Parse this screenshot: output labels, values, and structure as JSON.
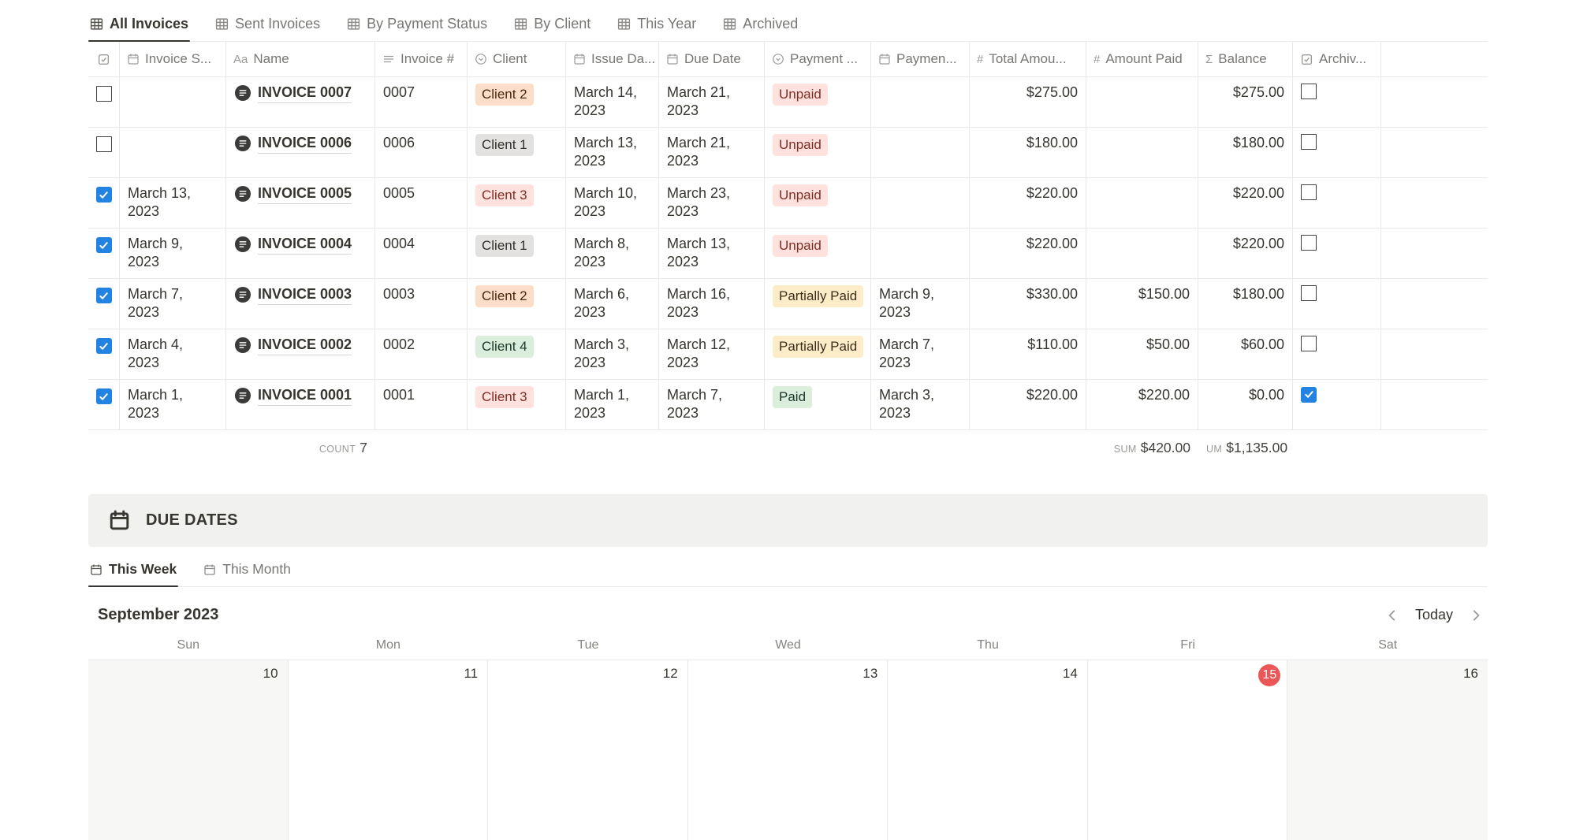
{
  "tabs": [
    {
      "label": "All Invoices",
      "active": true
    },
    {
      "label": "Sent Invoices",
      "active": false
    },
    {
      "label": "By Payment Status",
      "active": false
    },
    {
      "label": "By Client",
      "active": false
    },
    {
      "label": "This Year",
      "active": false
    },
    {
      "label": "Archived",
      "active": false
    }
  ],
  "table": {
    "columns": [
      {
        "key": "select",
        "label": "",
        "icon": "checkbox-icon"
      },
      {
        "key": "invoice_sent",
        "label": "Invoice S...",
        "icon": "calendar-icon"
      },
      {
        "key": "name",
        "label": "Name",
        "icon": "title-icon"
      },
      {
        "key": "invoice_number",
        "label": "Invoice #",
        "icon": "text-icon"
      },
      {
        "key": "client",
        "label": "Client",
        "icon": "select-icon"
      },
      {
        "key": "issue_date",
        "label": "Issue Da...",
        "icon": "calendar-icon"
      },
      {
        "key": "due_date",
        "label": "Due Date",
        "icon": "calendar-icon"
      },
      {
        "key": "payment_status",
        "label": "Payment ...",
        "icon": "select-icon"
      },
      {
        "key": "payment_date",
        "label": "Paymen...",
        "icon": "calendar-icon"
      },
      {
        "key": "total_amount",
        "label": "Total Amou...",
        "icon": "number-icon"
      },
      {
        "key": "amount_paid",
        "label": "Amount Paid",
        "icon": "number-icon"
      },
      {
        "key": "balance",
        "label": "Balance",
        "icon": "formula-icon"
      },
      {
        "key": "archived",
        "label": "Archiv...",
        "icon": "checkbox-icon"
      }
    ],
    "rows": [
      {
        "selected": false,
        "sent_date": "",
        "name": "INVOICE 0007",
        "invoice_no": "0007",
        "client": {
          "label": "Client 2",
          "color": "orange"
        },
        "issue_date": "March 14, 2023",
        "due_date": "March 21, 2023",
        "status": {
          "label": "Unpaid",
          "color": "red"
        },
        "payment_date": "",
        "total": "$275.00",
        "amount_paid": "",
        "balance": "$275.00",
        "archived": false
      },
      {
        "selected": false,
        "sent_date": "",
        "name": "INVOICE 0006",
        "invoice_no": "0006",
        "client": {
          "label": "Client 1",
          "color": "gray"
        },
        "issue_date": "March 13, 2023",
        "due_date": "March 21, 2023",
        "status": {
          "label": "Unpaid",
          "color": "red"
        },
        "payment_date": "",
        "total": "$180.00",
        "amount_paid": "",
        "balance": "$180.00",
        "archived": false
      },
      {
        "selected": true,
        "sent_date": "March 13, 2023",
        "name": "INVOICE 0005",
        "invoice_no": "0005",
        "client": {
          "label": "Client 3",
          "color": "red"
        },
        "issue_date": "March 10, 2023",
        "due_date": "March 23, 2023",
        "status": {
          "label": "Unpaid",
          "color": "red"
        },
        "payment_date": "",
        "total": "$220.00",
        "amount_paid": "",
        "balance": "$220.00",
        "archived": false
      },
      {
        "selected": true,
        "sent_date": "March 9, 2023",
        "name": "INVOICE 0004",
        "invoice_no": "0004",
        "client": {
          "label": "Client 1",
          "color": "gray"
        },
        "issue_date": "March 8, 2023",
        "due_date": "March 13, 2023",
        "status": {
          "label": "Unpaid",
          "color": "red"
        },
        "payment_date": "",
        "total": "$220.00",
        "amount_paid": "",
        "balance": "$220.00",
        "archived": false
      },
      {
        "selected": true,
        "sent_date": "March 7, 2023",
        "name": "INVOICE 0003",
        "invoice_no": "0003",
        "client": {
          "label": "Client 2",
          "color": "orange"
        },
        "issue_date": "March 6, 2023",
        "due_date": "March 16, 2023",
        "status": {
          "label": "Partially Paid",
          "color": "yellow"
        },
        "payment_date": "March 9, 2023",
        "total": "$330.00",
        "amount_paid": "$150.00",
        "balance": "$180.00",
        "archived": false
      },
      {
        "selected": true,
        "sent_date": "March 4, 2023",
        "name": "INVOICE 0002",
        "invoice_no": "0002",
        "client": {
          "label": "Client 4",
          "color": "green"
        },
        "issue_date": "March 3, 2023",
        "due_date": "March 12, 2023",
        "status": {
          "label": "Partially Paid",
          "color": "yellow"
        },
        "payment_date": "March 7, 2023",
        "total": "$110.00",
        "amount_paid": "$50.00",
        "balance": "$60.00",
        "archived": false
      },
      {
        "selected": true,
        "sent_date": "March 1, 2023",
        "name": "INVOICE 0001",
        "invoice_no": "0001",
        "client": {
          "label": "Client 3",
          "color": "red"
        },
        "issue_date": "March 1, 2023",
        "due_date": "March 7, 2023",
        "status": {
          "label": "Paid",
          "color": "green"
        },
        "payment_date": "March 3, 2023",
        "total": "$220.00",
        "amount_paid": "$220.00",
        "balance": "$0.00",
        "archived": true
      }
    ],
    "summary": {
      "count_label": "COUNT",
      "count_value": "7",
      "paid_sum_label": "SUM",
      "paid_sum_value": "$420.00",
      "balance_sum_label": "UM",
      "balance_sum_value": "$1,135.00"
    }
  },
  "due_dates": {
    "title": "DUE DATES",
    "tabs": [
      {
        "label": "This Week",
        "active": true
      },
      {
        "label": "This Month",
        "active": false
      }
    ],
    "calendar": {
      "month_title": "September 2023",
      "today_label": "Today",
      "day_headers": [
        "Sun",
        "Mon",
        "Tue",
        "Wed",
        "Thu",
        "Fri",
        "Sat"
      ],
      "week": [
        {
          "day": "10",
          "weekend": true
        },
        {
          "day": "11"
        },
        {
          "day": "12"
        },
        {
          "day": "13"
        },
        {
          "day": "14"
        },
        {
          "day": "15",
          "today": true
        },
        {
          "day": "16",
          "weekend": true
        }
      ]
    }
  },
  "colors": {
    "accent_blue": "#2383e2",
    "today_red": "#eb5757",
    "banner_bg": "#f1f1ef",
    "weekend_bg": "#f7f7f5",
    "tag_gray_bg": "#e3e2e0",
    "tag_orange_bg": "#fadec9",
    "tag_red_bg": "#ffe2dd",
    "tag_green_bg": "#dbeddb",
    "tag_yellow_bg": "#fdecc8"
  }
}
